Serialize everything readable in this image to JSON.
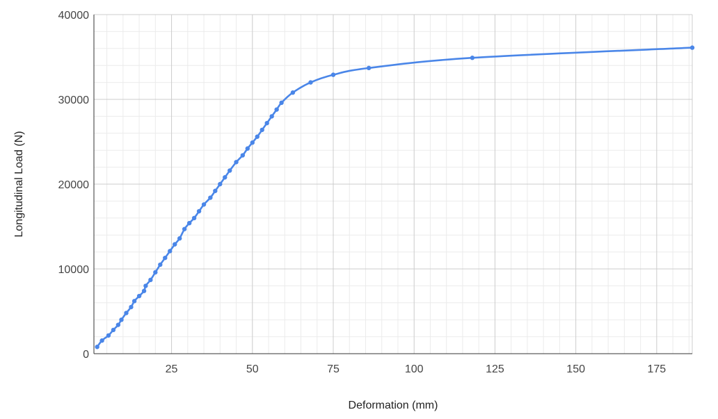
{
  "chart_data": {
    "type": "line",
    "xlabel": "Deformation (mm)",
    "ylabel": "Longitudinal Load (N)",
    "xlim": [
      1,
      186
    ],
    "ylim": [
      0,
      40000
    ],
    "x_ticks": [
      25,
      50,
      75,
      100,
      125,
      150,
      175
    ],
    "y_ticks": [
      0,
      10000,
      20000,
      30000,
      40000
    ],
    "grid": true,
    "legend": "none",
    "series": [
      {
        "color": "#4A86E8",
        "points": [
          [
            2,
            800
          ],
          [
            3.5,
            1550
          ],
          [
            5.5,
            2150
          ],
          [
            7,
            2800
          ],
          [
            8.5,
            3400
          ],
          [
            9.5,
            4000
          ],
          [
            11,
            4800
          ],
          [
            12.5,
            5500
          ],
          [
            13.5,
            6200
          ],
          [
            15,
            6800
          ],
          [
            16.5,
            7400
          ],
          [
            17,
            8000
          ],
          [
            18.5,
            8700
          ],
          [
            20,
            9600
          ],
          [
            21.5,
            10500
          ],
          [
            23,
            11300
          ],
          [
            24.5,
            12100
          ],
          [
            26,
            12900
          ],
          [
            27.5,
            13600
          ],
          [
            29,
            14700
          ],
          [
            30.5,
            15400
          ],
          [
            32,
            16000
          ],
          [
            33.5,
            16800
          ],
          [
            35,
            17600
          ],
          [
            37,
            18400
          ],
          [
            38.5,
            19200
          ],
          [
            40,
            20000
          ],
          [
            41.5,
            20800
          ],
          [
            43,
            21600
          ],
          [
            45,
            22600
          ],
          [
            47,
            23400
          ],
          [
            48.5,
            24200
          ],
          [
            50,
            24900
          ],
          [
            51.5,
            25600
          ],
          [
            53,
            26400
          ],
          [
            54.5,
            27200
          ],
          [
            56,
            28000
          ],
          [
            57.5,
            28800
          ],
          [
            59,
            29600
          ],
          [
            62.5,
            30800
          ],
          [
            68,
            32000
          ],
          [
            75,
            32900
          ],
          [
            86,
            33700
          ],
          [
            118,
            34900
          ],
          [
            186,
            36100
          ]
        ]
      }
    ]
  }
}
